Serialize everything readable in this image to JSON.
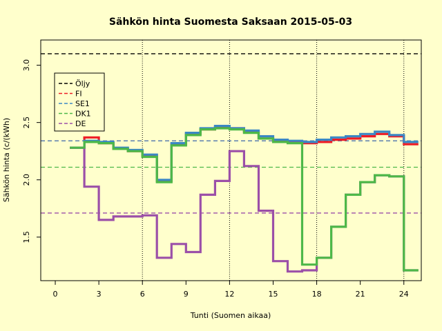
{
  "chart_data": {
    "type": "line",
    "title": "Sähkön hinta Suomesta Saksaan 2015-05-03",
    "xlabel": "Tunti (Suomen aikaa)",
    "ylabel": "Sähkön hinta (c/(kWh)",
    "xlim": [
      -1,
      25.2
    ],
    "ylim": [
      1.12,
      3.22
    ],
    "x_ticks": [
      0,
      3,
      6,
      9,
      12,
      15,
      18,
      21,
      24
    ],
    "y_ticks": [
      1.5,
      2.0,
      2.5,
      3.0
    ],
    "vertical_guides": [
      6,
      12,
      18,
      24
    ],
    "background": "#ffffcc",
    "legend_position": "top-left",
    "reference_lines": [
      {
        "name": "Öljy",
        "value": 3.1,
        "color": "#000000"
      },
      {
        "name": "FI",
        "value": 2.34,
        "color": "#ee1c25"
      },
      {
        "name": "SE1",
        "value": 2.34,
        "color": "#3b87c4"
      },
      {
        "name": "DK1",
        "value": 2.11,
        "color": "#4db848"
      },
      {
        "name": "DE",
        "value": 1.71,
        "color": "#9b4fa8"
      }
    ],
    "series": [
      {
        "name": "FI",
        "color": "#ee1c25",
        "hour_start": [
          1,
          2,
          3,
          4,
          5,
          6,
          7,
          8,
          9,
          10,
          11,
          12,
          13,
          14,
          15,
          16,
          17,
          18,
          19,
          20,
          21,
          22,
          23,
          24
        ],
        "values": [
          2.28,
          2.37,
          2.32,
          2.27,
          2.25,
          2.21,
          1.99,
          2.31,
          2.4,
          2.44,
          2.46,
          2.45,
          2.42,
          2.36,
          2.34,
          2.33,
          2.32,
          2.33,
          2.35,
          2.36,
          2.38,
          2.4,
          2.38,
          2.31
        ]
      },
      {
        "name": "SE1",
        "color": "#3b87c4",
        "hour_start": [
          1,
          2,
          3,
          4,
          5,
          6,
          7,
          8,
          9,
          10,
          11,
          12,
          13,
          14,
          15,
          16,
          17,
          18,
          19,
          20,
          21,
          22,
          23,
          24
        ],
        "values": [
          2.28,
          2.34,
          2.33,
          2.28,
          2.26,
          2.22,
          2.0,
          2.32,
          2.41,
          2.45,
          2.47,
          2.45,
          2.43,
          2.38,
          2.35,
          2.34,
          2.33,
          2.35,
          2.37,
          2.38,
          2.4,
          2.42,
          2.39,
          2.33
        ]
      },
      {
        "name": "DE",
        "color": "#9b4fa8",
        "hour_start": [
          1,
          2,
          3,
          4,
          5,
          6,
          7,
          8,
          9,
          10,
          11,
          12,
          13,
          14,
          15,
          16,
          17,
          18,
          19,
          20,
          21,
          22,
          23,
          24
        ],
        "values": [
          2.28,
          1.94,
          1.65,
          1.68,
          1.68,
          1.69,
          1.32,
          1.44,
          1.37,
          1.87,
          1.99,
          2.25,
          2.12,
          1.73,
          1.29,
          1.2,
          1.21,
          1.32,
          1.59,
          1.87,
          1.98,
          2.04,
          2.03,
          1.21
        ]
      },
      {
        "name": "DK1",
        "color": "#4db848",
        "hour_start": [
          1,
          2,
          3,
          4,
          5,
          6,
          7,
          8,
          9,
          10,
          11,
          12,
          13,
          14,
          15,
          16,
          17,
          18,
          19,
          20,
          21,
          22,
          23,
          24
        ],
        "values": [
          2.28,
          2.33,
          2.32,
          2.27,
          2.25,
          2.2,
          1.98,
          2.3,
          2.39,
          2.44,
          2.45,
          2.44,
          2.41,
          2.36,
          2.33,
          2.32,
          1.26,
          1.32,
          1.59,
          1.87,
          1.98,
          2.04,
          2.03,
          1.21
        ]
      }
    ]
  }
}
